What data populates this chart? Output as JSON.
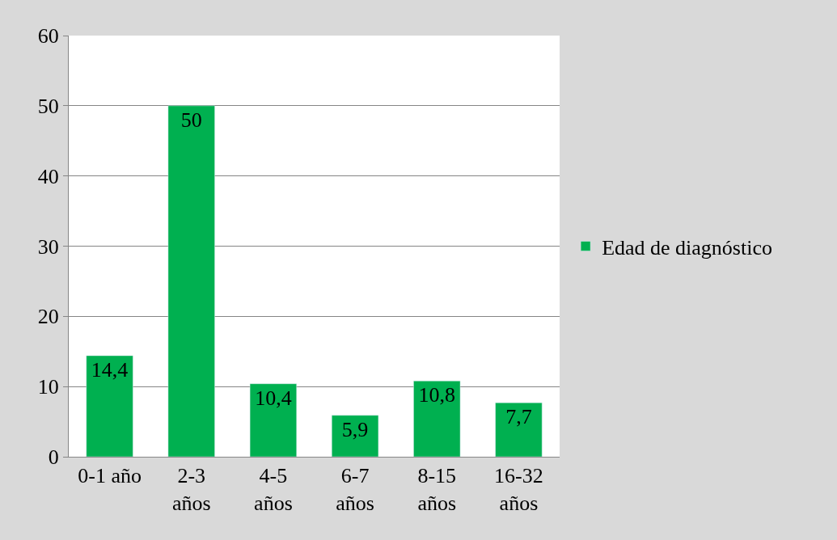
{
  "chart_data": {
    "type": "bar",
    "categories": [
      "0-1 año",
      "2-3 años",
      "4-5 años",
      "6-7 años",
      "8-15 años",
      "16-32 años"
    ],
    "series": [
      {
        "name": "Edad de diagnóstico",
        "color": "#00b050",
        "values": [
          14.4,
          50,
          10.4,
          5.9,
          10.8,
          7.7
        ],
        "value_labels": [
          "14,4",
          "50",
          "10,4",
          "5,9",
          "10,8",
          "7,7"
        ]
      }
    ],
    "ylim": [
      0,
      60
    ],
    "yticks": [
      0,
      10,
      20,
      30,
      40,
      50,
      60
    ],
    "grid": "y",
    "legend": "right"
  }
}
